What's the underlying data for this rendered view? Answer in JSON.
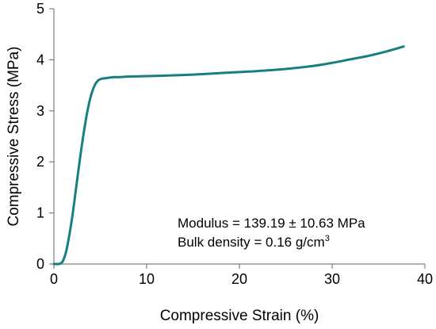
{
  "chart_data": {
    "type": "line",
    "xlabel": "Compressive Strain (%)",
    "ylabel": "Compressive Stress (MPa)",
    "xlim": [
      0,
      40
    ],
    "ylim": [
      0,
      5
    ],
    "x_ticks": [
      "0",
      "10",
      "20",
      "30",
      "40"
    ],
    "y_ticks": [
      "0",
      "1",
      "2",
      "3",
      "4",
      "5"
    ],
    "grid": false,
    "line_color": "#17807e",
    "series": [
      {
        "x": [
          0.0,
          0.5,
          0.8,
          1.0,
          1.3,
          1.6,
          2.0,
          2.4,
          2.8,
          3.2,
          3.6,
          4.0,
          4.4,
          4.8,
          5.2,
          5.6,
          6.0,
          6.5,
          7,
          8,
          10,
          12,
          15,
          18,
          20,
          22,
          25,
          28,
          30,
          32,
          34,
          36,
          37.7
        ],
        "y": [
          0.0,
          0.0,
          0.02,
          0.07,
          0.23,
          0.5,
          0.95,
          1.5,
          2.05,
          2.55,
          2.98,
          3.3,
          3.5,
          3.6,
          3.63,
          3.64,
          3.65,
          3.66,
          3.66,
          3.67,
          3.68,
          3.69,
          3.71,
          3.74,
          3.76,
          3.78,
          3.82,
          3.88,
          3.94,
          4.01,
          4.08,
          4.17,
          4.26
        ]
      }
    ],
    "annotations": {
      "modulus": "Modulus = 139.19 ± 10.63 MPa",
      "density_prefix": "Bulk density = 0.16 g/cm",
      "density_sup": "3"
    }
  }
}
